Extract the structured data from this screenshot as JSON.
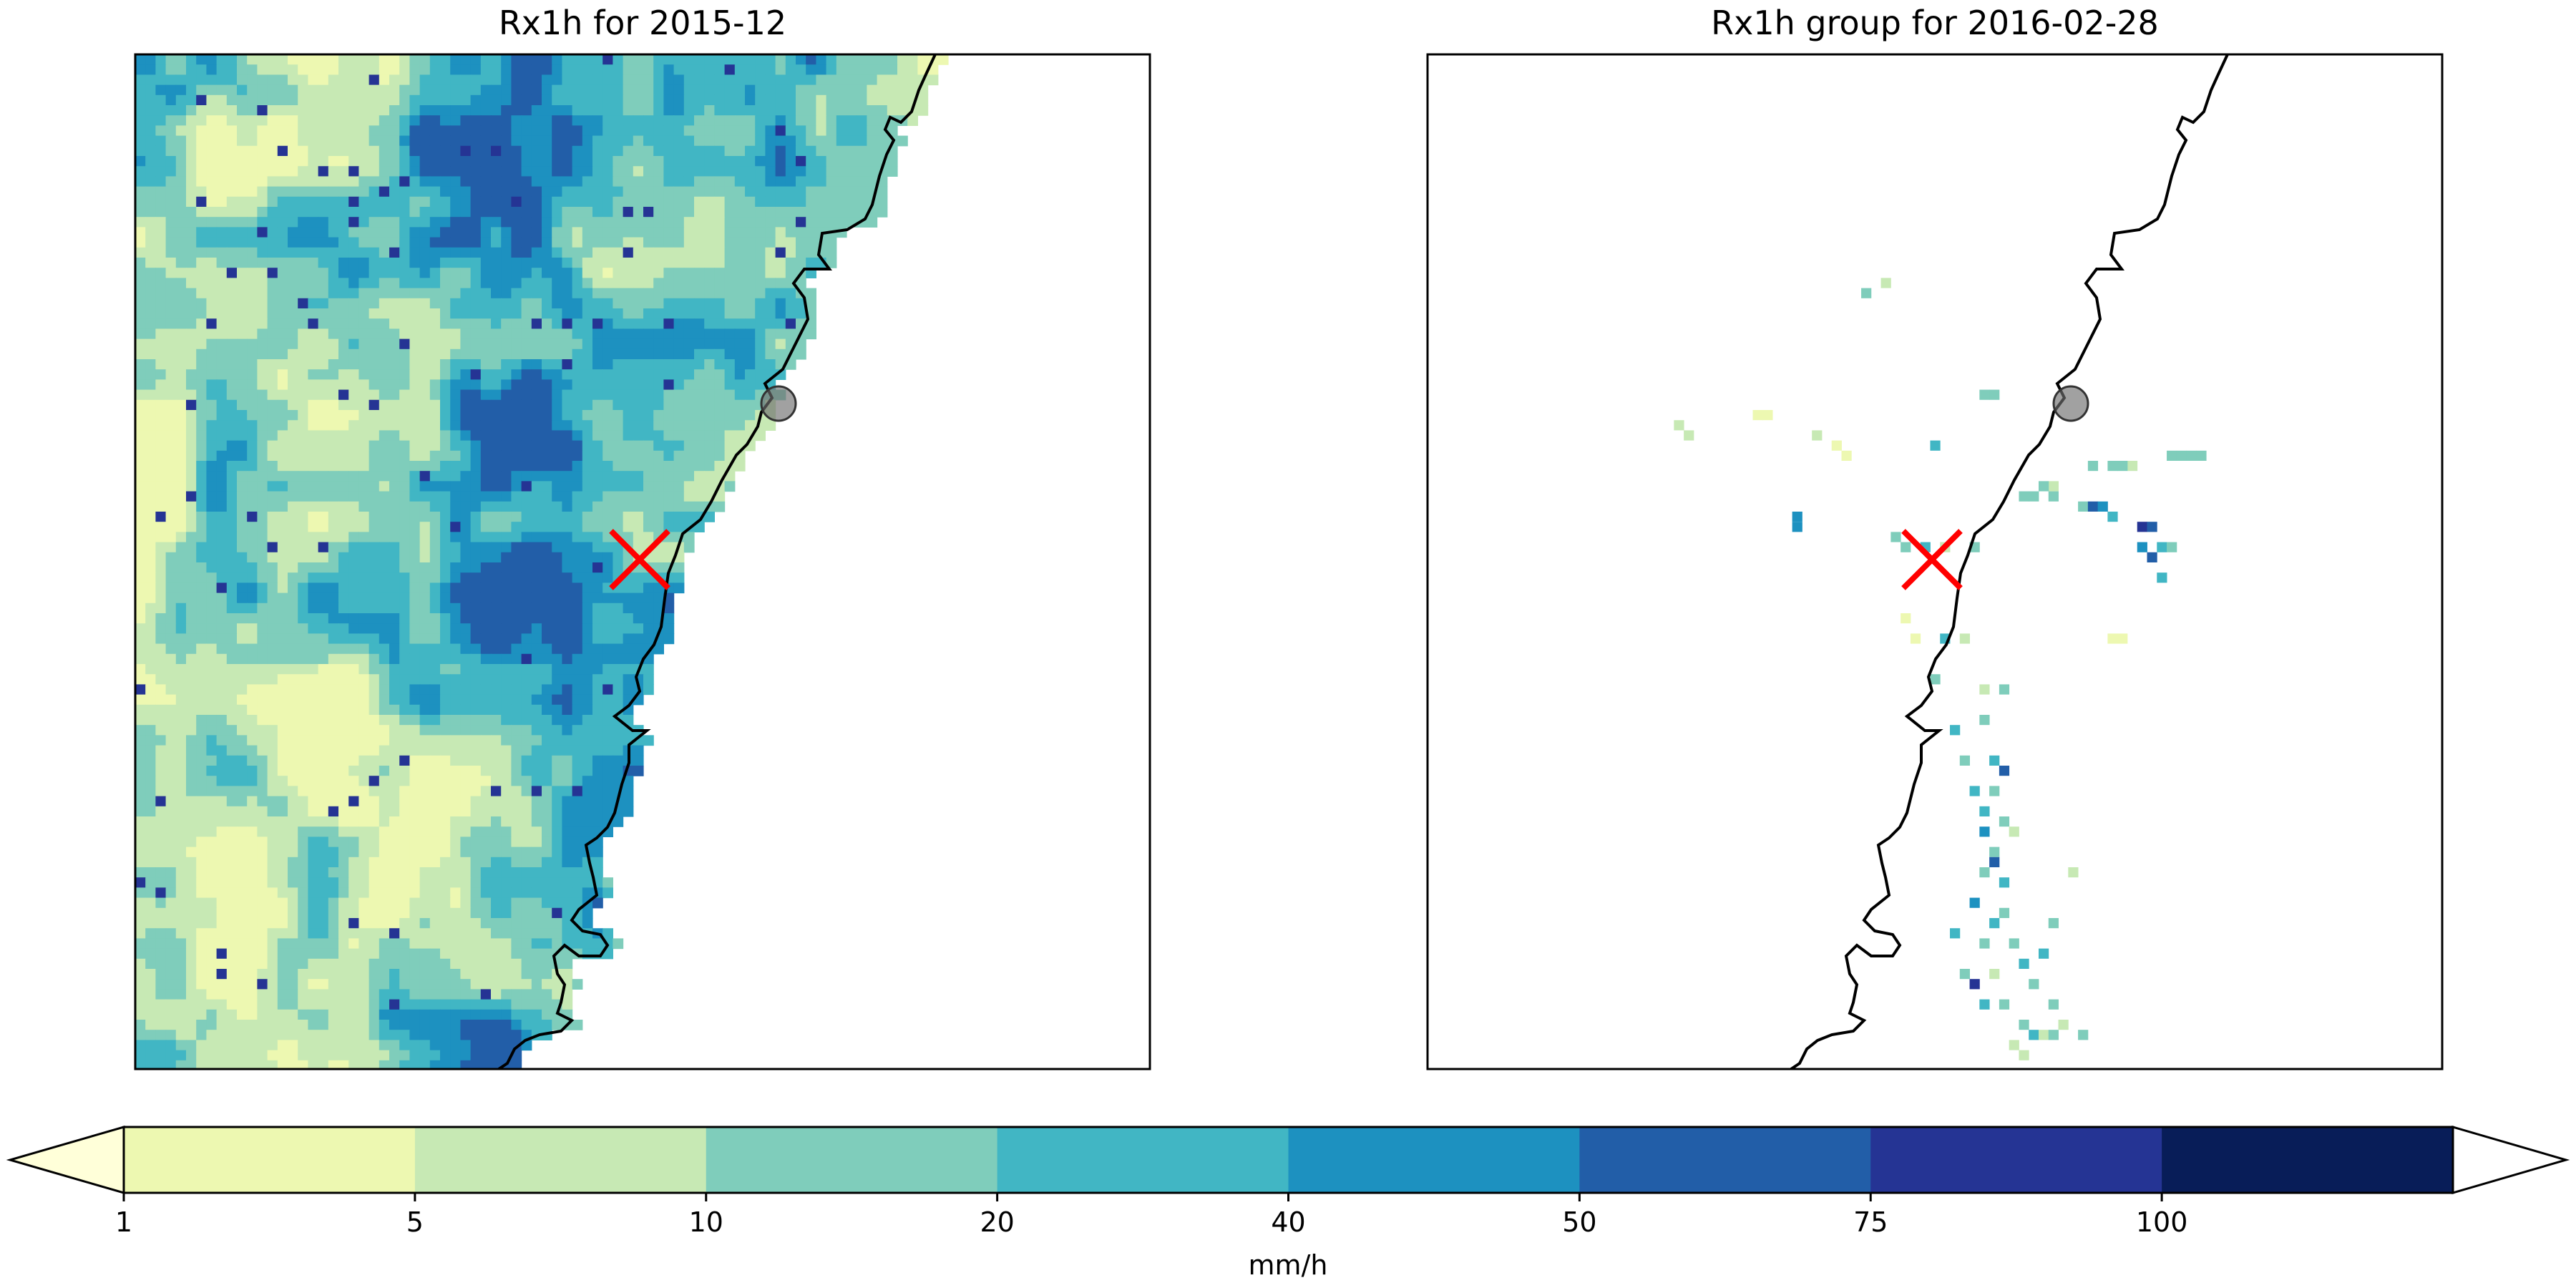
{
  "panels": [
    {
      "title": "Rx1h for 2015-12",
      "layer": "full",
      "markers": {
        "location": "red-x",
        "city": "grey-circle"
      }
    },
    {
      "title": "Rx1h group for 2016-02-28",
      "layer": "sparse",
      "markers": {
        "location": "red-x",
        "city": "grey-circle"
      }
    }
  ],
  "colorbar": {
    "levels": [
      "1",
      "5",
      "10",
      "20",
      "40",
      "50",
      "75",
      "100"
    ],
    "colors": [
      "#edf8b1",
      "#c7e9b4",
      "#7fcdbb",
      "#41b6c4",
      "#1d91c0",
      "#225ea8",
      "#253494",
      "#081d58"
    ],
    "under_color": "#ffffd9",
    "over_color": "#ffffff",
    "extend": "both",
    "unit": "mm/h"
  },
  "legend_colors": {
    "marker": "#ff0000",
    "coastline": "#000000",
    "city": "#6e6e6e"
  }
}
